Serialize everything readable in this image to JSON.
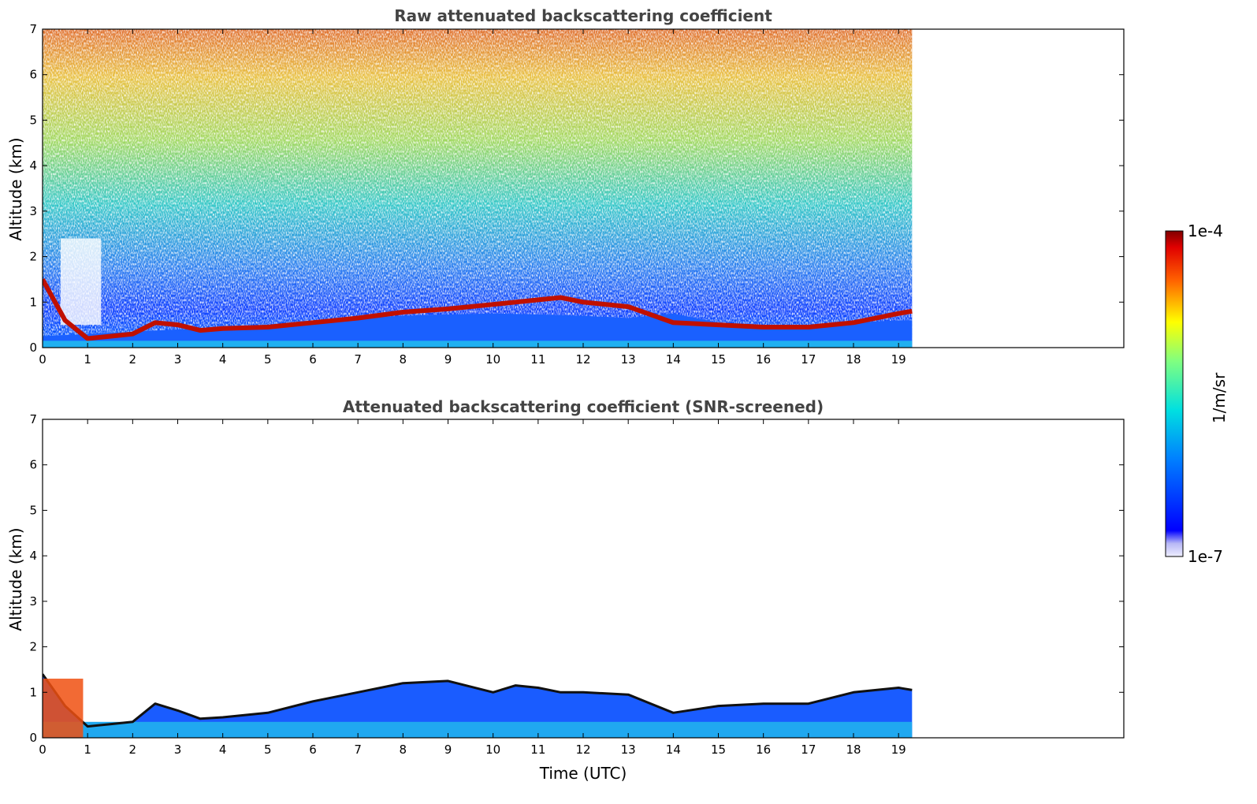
{
  "colorbar": {
    "max_label": "1e-4",
    "min_label": "1e-7",
    "unit_label": "1/m/sr",
    "colormap": "jet",
    "scale": "log"
  },
  "chart_data": [
    {
      "type": "heatmap",
      "title": "Raw attenuated backscattering coefficient",
      "xlabel": "",
      "ylabel": "Altitude (km)",
      "xlim": [
        0,
        24
      ],
      "ylim": [
        0,
        7
      ],
      "x_ticks": [
        "0",
        "1",
        "2",
        "3",
        "4",
        "5",
        "6",
        "7",
        "8",
        "9",
        "10",
        "11",
        "12",
        "13",
        "14",
        "15",
        "16",
        "17",
        "18",
        "19"
      ],
      "y_ticks": [
        "0",
        "1",
        "2",
        "3",
        "4",
        "5",
        "6",
        "7"
      ],
      "data_end_hour": 19.3,
      "aerosol_layer_top_km": [
        [
          0,
          1.5
        ],
        [
          0.5,
          0.6
        ],
        [
          1,
          0.2
        ],
        [
          1.5,
          0.25
        ],
        [
          2,
          0.3
        ],
        [
          2.5,
          0.55
        ],
        [
          3,
          0.5
        ],
        [
          3.5,
          0.38
        ],
        [
          4,
          0.42
        ],
        [
          5,
          0.45
        ],
        [
          6,
          0.55
        ],
        [
          7,
          0.65
        ],
        [
          8,
          0.78
        ],
        [
          9,
          0.85
        ],
        [
          10,
          0.95
        ],
        [
          10.5,
          1.0
        ],
        [
          11,
          1.05
        ],
        [
          11.5,
          1.1
        ],
        [
          12,
          1.0
        ],
        [
          13,
          0.9
        ],
        [
          14,
          0.55
        ],
        [
          15,
          0.5
        ],
        [
          16,
          0.45
        ],
        [
          17,
          0.45
        ],
        [
          18,
          0.55
        ],
        [
          19,
          0.75
        ],
        [
          19.3,
          0.8
        ]
      ],
      "noise_level_profile": [
        [
          0,
          0.2
        ],
        [
          1,
          0.25
        ],
        [
          2,
          0.3
        ],
        [
          3,
          0.35
        ],
        [
          4,
          0.4
        ],
        [
          5,
          0.45
        ],
        [
          6,
          0.5
        ],
        [
          7,
          0.6
        ],
        [
          8,
          0.65
        ],
        [
          9,
          0.68
        ],
        [
          10,
          0.7
        ],
        [
          11,
          0.68
        ],
        [
          12,
          0.65
        ],
        [
          13,
          0.6
        ],
        [
          14,
          0.7
        ],
        [
          15,
          0.5
        ],
        [
          16,
          0.45
        ],
        [
          17,
          0.45
        ],
        [
          18,
          0.5
        ],
        [
          19,
          0.55
        ],
        [
          19.3,
          0.55
        ]
      ]
    },
    {
      "type": "heatmap",
      "title": "Attenuated backscattering coefficient (SNR-screened)",
      "xlabel": "Time (UTC)",
      "ylabel": "Altitude (km)",
      "xlim": [
        0,
        24
      ],
      "ylim": [
        0,
        7
      ],
      "x_ticks": [
        "0",
        "1",
        "2",
        "3",
        "4",
        "5",
        "6",
        "7",
        "8",
        "9",
        "10",
        "11",
        "12",
        "13",
        "14",
        "15",
        "16",
        "17",
        "18",
        "19"
      ],
      "y_ticks": [
        "0",
        "1",
        "2",
        "3",
        "4",
        "5",
        "6",
        "7"
      ],
      "data_end_hour": 19.3,
      "screened_layer_top_km": [
        [
          0,
          1.4
        ],
        [
          0.5,
          0.7
        ],
        [
          1,
          0.25
        ],
        [
          1.5,
          0.3
        ],
        [
          2,
          0.35
        ],
        [
          2.5,
          0.75
        ],
        [
          3,
          0.6
        ],
        [
          3.5,
          0.42
        ],
        [
          4,
          0.45
        ],
        [
          5,
          0.55
        ],
        [
          6,
          0.8
        ],
        [
          7,
          1.0
        ],
        [
          8,
          1.2
        ],
        [
          9,
          1.25
        ],
        [
          10,
          1.0
        ],
        [
          10.5,
          1.15
        ],
        [
          11,
          1.1
        ],
        [
          11.5,
          1.0
        ],
        [
          12,
          1.0
        ],
        [
          13,
          0.95
        ],
        [
          14,
          0.55
        ],
        [
          15,
          0.7
        ],
        [
          16,
          0.75
        ],
        [
          17,
          0.75
        ],
        [
          18,
          1.0
        ],
        [
          19,
          1.1
        ],
        [
          19.3,
          1.05
        ]
      ]
    }
  ]
}
